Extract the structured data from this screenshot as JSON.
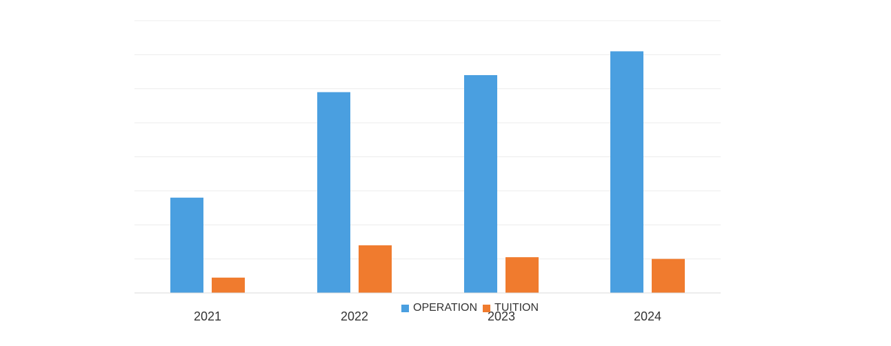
{
  "chart_data": {
    "type": "bar",
    "categories": [
      "2021",
      "2022",
      "2023",
      "2024"
    ],
    "series": [
      {
        "name": "OPERATION",
        "values": [
          28,
          59,
          64,
          71
        ]
      },
      {
        "name": "TUITION",
        "values": [
          4.5,
          14,
          10.5,
          10
        ]
      }
    ],
    "ylim": [
      0,
      80
    ],
    "grid": true,
    "legend_position": "bottom",
    "colors": {
      "OPERATION": "#4a9fe0",
      "TUITION": "#f07b2e",
      "grid": "#ececec",
      "axis": "#d9d9d9"
    }
  }
}
